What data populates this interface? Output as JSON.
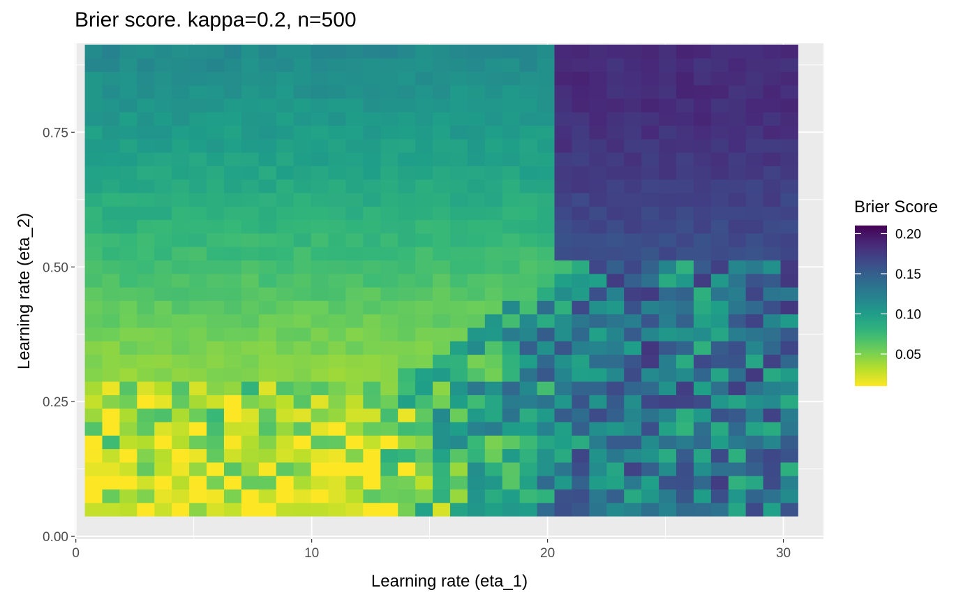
{
  "chart_data": {
    "type": "heatmap",
    "title": "Brier score. kappa=0.2, n=500",
    "xlabel": "Learning rate (eta_1)",
    "ylabel": "Learning rate (eta_2)",
    "xlim": [
      -0.05,
      31.7
    ],
    "ylim": [
      -0.005,
      0.915
    ],
    "x_ticks": [
      0,
      10,
      20,
      30
    ],
    "x_tick_labels": [
      "0",
      "10",
      "20",
      "30"
    ],
    "y_ticks": [
      0.0,
      0.25,
      0.5,
      0.75
    ],
    "y_tick_labels": [
      "0.00",
      "0.25",
      "0.50",
      "0.75"
    ],
    "x_range": [
      0.75,
      30.25
    ],
    "y_range": [
      0.05,
      0.9
    ],
    "x_steps": 41,
    "y_steps": 35,
    "grid": true,
    "colorscale": "viridis (reversed: yellow = low, dark purple = high)",
    "legend": {
      "title": "Brier Score",
      "position": "right",
      "min": 0.01,
      "max": 0.21,
      "ticks": [
        0.05,
        0.1,
        0.15,
        0.2
      ],
      "tick_labels": [
        "0.05",
        "0.10",
        "0.15",
        "0.20"
      ]
    },
    "value_grid_description": "rows listed from top (eta_2=0.90) to bottom (eta_2=0.05); columns from eta_1=0.75 to 30.25; values are Brier scores",
    "region_values": {
      "top_left": 0.115,
      "mid_left": 0.09,
      "lower_left": 0.05,
      "bottom_left": 0.02,
      "top_right": 0.185,
      "mid_right": 0.16,
      "bottom_right": 0.13
    }
  }
}
